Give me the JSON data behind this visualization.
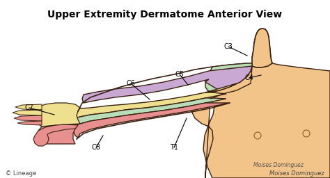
{
  "title": "Upper Extremity Dermatome Anterior View",
  "title_fontsize": 10,
  "bg_color": "#ffffff",
  "skin_color": "#F2C48A",
  "skin_outline": "#3a2010",
  "c3_color": "#F2C48A",
  "c4_color": "#C8E6C9",
  "c5_color": "#C9A8D4",
  "c6_color": "#EFE090",
  "c8_color": "#E89090",
  "t1_color": "#E89090",
  "green_color": "#B8DDB8",
  "copyright_text": "© Lineage",
  "author_text": "Moises Dominguez",
  "figsize": [
    4.74,
    2.56
  ],
  "dpi": 100
}
